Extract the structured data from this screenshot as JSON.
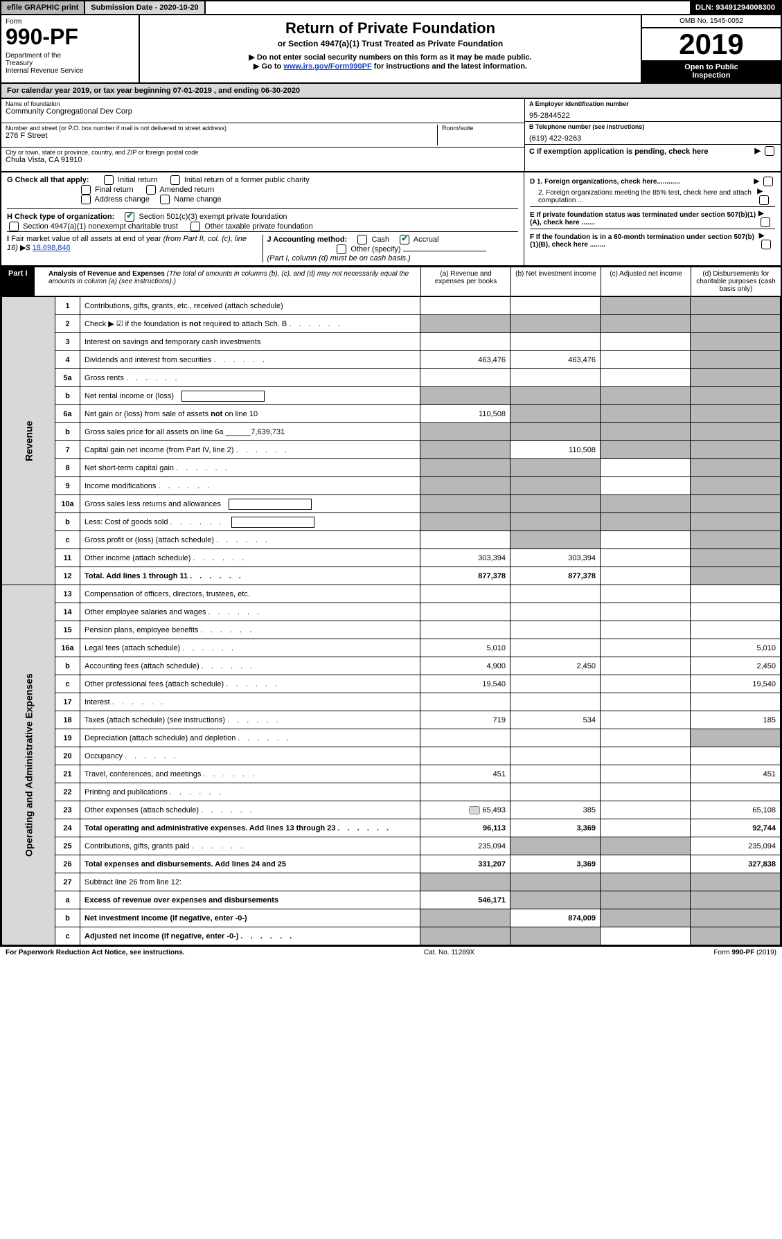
{
  "topbar": {
    "efile": "efile GRAPHIC print",
    "subdate_label": "Submission Date - 2020-10-20",
    "dln": "DLN: 93491294008300"
  },
  "header": {
    "form_label": "Form",
    "form_no": "990-PF",
    "dept": "Department of the Treasury\nInternal Revenue Service",
    "title1": "Return of Private Foundation",
    "title2": "or Section 4947(a)(1) Trust Treated as Private Foundation",
    "note1": "▶ Do not enter social security numbers on this form as it may be made public.",
    "note2_pre": "▶ Go to ",
    "note2_link": "www.irs.gov/Form990PF",
    "note2_post": " for instructions and the latest information.",
    "omb": "OMB No. 1545-0052",
    "year": "2019",
    "open": "Open to Public Inspection"
  },
  "calyear": "For calendar year 2019, or tax year beginning 07-01-2019                           , and ending 06-30-2020",
  "id_block": {
    "name_label": "Name of foundation",
    "name": "Community Congregational Dev Corp",
    "addr_label": "Number and street (or P.O. box number if mail is not delivered to street address)",
    "addr": "276 F Street",
    "room_label": "Room/suite",
    "city_label": "City or town, state or province, country, and ZIP or foreign postal code",
    "city": "Chula Vista, CA  91910",
    "a_label": "A Employer identification number",
    "ein": "95-2844522",
    "b_label": "B Telephone number (see instructions)",
    "phone": "(619) 422-9263",
    "c_label": "C If exemption application is pending, check here"
  },
  "checks": {
    "g_label": "G Check all that apply:",
    "g_items": [
      "Initial return",
      "Initial return of a former public charity",
      "Final return",
      "Amended return",
      "Address change",
      "Name change"
    ],
    "h_label": "H Check type of organization:",
    "h1": "Section 501(c)(3) exempt private foundation",
    "h2": "Section 4947(a)(1) nonexempt charitable trust",
    "h3": "Other taxable private foundation",
    "i_label": "I Fair market value of all assets at end of year (from Part II, col. (c), line 16) ▶$",
    "i_val": "18,698,846",
    "j_label": "J Accounting method:",
    "j_cash": "Cash",
    "j_accrual": "Accrual",
    "j_other": "Other (specify)",
    "j_note": "(Part I, column (d) must be on cash basis.)",
    "d1": "D 1. Foreign organizations, check here............",
    "d2": "2. Foreign organizations meeting the 85% test, check here and attach computation ...",
    "e_label": "E  If private foundation status was terminated under section 507(b)(1)(A), check here .......",
    "f_label": "F  If the foundation is in a 60-month termination under section 507(b)(1)(B), check here ........"
  },
  "part1": {
    "label": "Part I",
    "title": "Analysis of Revenue and Expenses",
    "subtitle": "(The total of amounts in columns (b), (c), and (d) may not necessarily equal the amounts in column (a) (see instructions).)",
    "col_a": "(a)   Revenue and expenses per books",
    "col_b": "(b)  Net investment income",
    "col_c": "(c)  Adjusted net income",
    "col_d": "(d)  Disbursements for charitable purposes (cash basis only)"
  },
  "side_labels": {
    "revenue": "Revenue",
    "expenses": "Operating and Administrative Expenses"
  },
  "rows": [
    {
      "n": "1",
      "d": "Contributions, gifts, grants, etc., received (attach schedule)",
      "a": "",
      "b": "",
      "c": "s",
      "dcol": "s"
    },
    {
      "n": "2",
      "d": "Check ▶ ☑ if the foundation is not required to attach Sch. B",
      "a": "s",
      "b": "s",
      "c": "s",
      "dcol": "s",
      "dots": true
    },
    {
      "n": "3",
      "d": "Interest on savings and temporary cash investments",
      "a": "",
      "b": "",
      "c": "",
      "dcol": "s"
    },
    {
      "n": "4",
      "d": "Dividends and interest from securities",
      "a": "463,476",
      "b": "463,476",
      "c": "",
      "dcol": "s",
      "dots": true
    },
    {
      "n": "5a",
      "d": "Gross rents",
      "a": "",
      "b": "",
      "c": "",
      "dcol": "s",
      "dots": true
    },
    {
      "n": "b",
      "d": "Net rental income or (loss)",
      "a": "s",
      "b": "s",
      "c": "s",
      "dcol": "s",
      "box": true
    },
    {
      "n": "6a",
      "d": "Net gain or (loss) from sale of assets not on line 10",
      "a": "110,508",
      "b": "s",
      "c": "s",
      "dcol": "s"
    },
    {
      "n": "b",
      "d": "Gross sales price for all assets on line 6a ______7,639,731",
      "a": "s",
      "b": "s",
      "c": "s",
      "dcol": "s"
    },
    {
      "n": "7",
      "d": "Capital gain net income (from Part IV, line 2)",
      "a": "s",
      "b": "110,508",
      "c": "s",
      "dcol": "s",
      "dots": true
    },
    {
      "n": "8",
      "d": "Net short-term capital gain",
      "a": "s",
      "b": "s",
      "c": "",
      "dcol": "s",
      "dots": true
    },
    {
      "n": "9",
      "d": "Income modifications",
      "a": "s",
      "b": "s",
      "c": "",
      "dcol": "s",
      "dots": true
    },
    {
      "n": "10a",
      "d": "Gross sales less returns and allowances",
      "a": "s",
      "b": "s",
      "c": "s",
      "dcol": "s",
      "box": true
    },
    {
      "n": "b",
      "d": "Less: Cost of goods sold",
      "a": "s",
      "b": "s",
      "c": "s",
      "dcol": "s",
      "box": true,
      "dots": true
    },
    {
      "n": "c",
      "d": "Gross profit or (loss) (attach schedule)",
      "a": "",
      "b": "s",
      "c": "",
      "dcol": "s",
      "dots": true
    },
    {
      "n": "11",
      "d": "Other income (attach schedule)",
      "a": "303,394",
      "b": "303,394",
      "c": "",
      "dcol": "s",
      "dots": true
    },
    {
      "n": "12",
      "d": "Total. Add lines 1 through 11",
      "a": "877,378",
      "b": "877,378",
      "c": "",
      "dcol": "s",
      "dots": true,
      "bold": true
    }
  ],
  "exp_rows": [
    {
      "n": "13",
      "d": "Compensation of officers, directors, trustees, etc.",
      "a": "",
      "b": "",
      "c": "",
      "dcol": ""
    },
    {
      "n": "14",
      "d": "Other employee salaries and wages",
      "a": "",
      "b": "",
      "c": "",
      "dcol": "",
      "dots": true
    },
    {
      "n": "15",
      "d": "Pension plans, employee benefits",
      "a": "",
      "b": "",
      "c": "",
      "dcol": "",
      "dots": true
    },
    {
      "n": "16a",
      "d": "Legal fees (attach schedule)",
      "a": "5,010",
      "b": "",
      "c": "",
      "dcol": "5,010",
      "dots": true
    },
    {
      "n": "b",
      "d": "Accounting fees (attach schedule)",
      "a": "4,900",
      "b": "2,450",
      "c": "",
      "dcol": "2,450",
      "dots": true
    },
    {
      "n": "c",
      "d": "Other professional fees (attach schedule)",
      "a": "19,540",
      "b": "",
      "c": "",
      "dcol": "19,540",
      "dots": true
    },
    {
      "n": "17",
      "d": "Interest",
      "a": "",
      "b": "",
      "c": "",
      "dcol": "",
      "dots": true
    },
    {
      "n": "18",
      "d": "Taxes (attach schedule) (see instructions)",
      "a": "719",
      "b": "534",
      "c": "",
      "dcol": "185",
      "dots": true
    },
    {
      "n": "19",
      "d": "Depreciation (attach schedule) and depletion",
      "a": "",
      "b": "",
      "c": "",
      "dcol": "s",
      "dots": true
    },
    {
      "n": "20",
      "d": "Occupancy",
      "a": "",
      "b": "",
      "c": "",
      "dcol": "",
      "dots": true
    },
    {
      "n": "21",
      "d": "Travel, conferences, and meetings",
      "a": "451",
      "b": "",
      "c": "",
      "dcol": "451",
      "dots": true
    },
    {
      "n": "22",
      "d": "Printing and publications",
      "a": "",
      "b": "",
      "c": "",
      "dcol": "",
      "dots": true
    },
    {
      "n": "23",
      "d": "Other expenses (attach schedule)",
      "a": "65,493",
      "b": "385",
      "c": "",
      "dcol": "65,108",
      "dots": true,
      "icon": true
    },
    {
      "n": "24",
      "d": "Total operating and administrative expenses. Add lines 13 through 23",
      "a": "96,113",
      "b": "3,369",
      "c": "",
      "dcol": "92,744",
      "dots": true,
      "bold": true
    },
    {
      "n": "25",
      "d": "Contributions, gifts, grants paid",
      "a": "235,094",
      "b": "s",
      "c": "s",
      "dcol": "235,094",
      "dots": true
    },
    {
      "n": "26",
      "d": "Total expenses and disbursements. Add lines 24 and 25",
      "a": "331,207",
      "b": "3,369",
      "c": "",
      "dcol": "327,838",
      "bold": true
    },
    {
      "n": "27",
      "d": "Subtract line 26 from line 12:",
      "a": "s",
      "b": "s",
      "c": "s",
      "dcol": "s"
    },
    {
      "n": "a",
      "d": "Excess of revenue over expenses and disbursements",
      "a": "546,171",
      "b": "s",
      "c": "s",
      "dcol": "s",
      "bold": true
    },
    {
      "n": "b",
      "d": "Net investment income (if negative, enter -0-)",
      "a": "s",
      "b": "874,009",
      "c": "s",
      "dcol": "s",
      "bold": true
    },
    {
      "n": "c",
      "d": "Adjusted net income (if negative, enter -0-)",
      "a": "s",
      "b": "s",
      "c": "",
      "dcol": "s",
      "bold": true,
      "dots": true
    }
  ],
  "footer": {
    "left": "For Paperwork Reduction Act Notice, see instructions.",
    "center": "Cat. No. 11289X",
    "right": "Form 990-PF (2019)"
  }
}
